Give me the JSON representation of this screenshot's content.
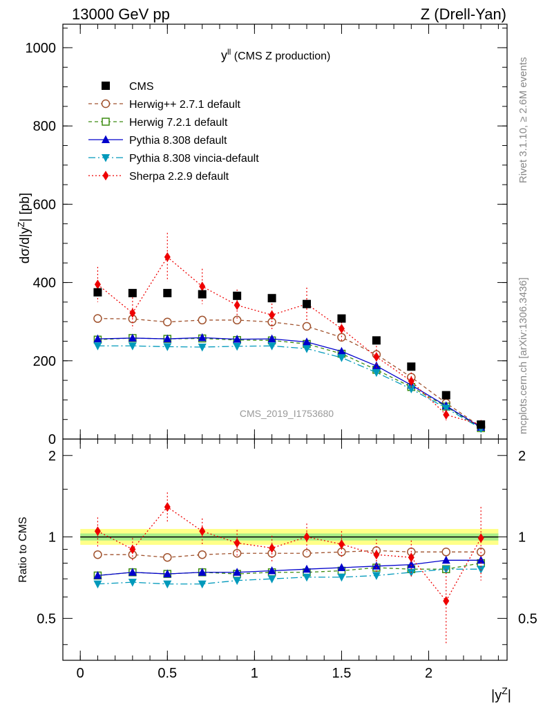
{
  "header": {
    "left": "13000 GeV pp",
    "right": "Z (Drell-Yan)"
  },
  "side_labels": {
    "rivet": "Rivet 3.1.10, ≥ 2.6M events",
    "mcplots": "mcplots.cern.ch [arXiv:1306.3436]"
  },
  "chart_data": {
    "type": "line",
    "title": "y^ll (CMS Z production)",
    "title_main": "y",
    "title_sup": "ll",
    "title_rest": " (CMS Z production)",
    "watermark": "CMS_2019_I1753680",
    "xlabel": "|y^Z|",
    "ylabel": "dσ/d|y^Z| [pb]",
    "ratio_ylabel": "Ratio to CMS",
    "xlim": [
      -0.1,
      2.45
    ],
    "ylim": [
      0,
      1060
    ],
    "ratio_ylim": [
      0.35,
      2.3
    ],
    "x_ticks": [
      "0",
      "0.5",
      "1",
      "1.5",
      "2"
    ],
    "y_ticks": [
      "0",
      "200",
      "400",
      "600",
      "800",
      "1000"
    ],
    "ratio_ticks": [
      "0.5",
      "1",
      "2"
    ],
    "x": [
      0.1,
      0.3,
      0.5,
      0.7,
      0.9,
      1.1,
      1.3,
      1.5,
      1.7,
      1.9,
      2.1,
      2.3
    ],
    "data": {
      "name": "CMS",
      "values": [
        375,
        373,
        373,
        370,
        366,
        360,
        345,
        308,
        252,
        185,
        112,
        37
      ]
    },
    "series": [
      {
        "name": "Herwig++ 2.7.1 default",
        "color": "#a0522d",
        "marker": "open-circle",
        "dash": "5,4",
        "values": [
          308,
          307,
          299,
          304,
          304,
          299,
          288,
          260,
          216,
          158,
          92,
          31
        ],
        "ratio": [
          0.86,
          0.86,
          0.84,
          0.86,
          0.87,
          0.87,
          0.87,
          0.88,
          0.89,
          0.88,
          0.88,
          0.88
        ]
      },
      {
        "name": "Herwig 7.2.1 default",
        "color": "#3c8c10",
        "marker": "open-square",
        "dash": "5,4",
        "values": [
          254,
          258,
          256,
          257,
          253,
          252,
          243,
          218,
          177,
          133,
          83,
          28
        ],
        "ratio": [
          0.72,
          0.74,
          0.73,
          0.74,
          0.73,
          0.74,
          0.74,
          0.75,
          0.77,
          0.76,
          0.76,
          0.8
        ]
      },
      {
        "name": "Pythia 8.308 default",
        "color": "#0000cc",
        "marker": "filled-triangle-up",
        "dash": "",
        "values": [
          256,
          258,
          256,
          259,
          255,
          256,
          248,
          224,
          187,
          138,
          85,
          30
        ],
        "ratio": [
          0.72,
          0.74,
          0.73,
          0.74,
          0.74,
          0.75,
          0.76,
          0.77,
          0.78,
          0.79,
          0.82,
          0.82
        ]
      },
      {
        "name": "Pythia 8.308 vincia-default",
        "color": "#0099bb",
        "marker": "filled-triangle-down",
        "dash": "10,4,2,4",
        "values": [
          238,
          238,
          236,
          235,
          237,
          238,
          231,
          208,
          170,
          128,
          79,
          27
        ],
        "ratio": [
          0.67,
          0.68,
          0.67,
          0.67,
          0.69,
          0.7,
          0.71,
          0.71,
          0.72,
          0.74,
          0.76,
          0.76
        ]
      },
      {
        "name": "Sherpa 2.2.9 default",
        "color": "#ee0000",
        "marker": "filled-diamond",
        "dash": "2,3",
        "values": [
          395,
          322,
          465,
          390,
          342,
          317,
          345,
          282,
          210,
          148,
          62,
          37
        ],
        "errors": [
          45,
          40,
          62,
          45,
          40,
          38,
          42,
          35,
          28,
          22,
          14,
          8
        ],
        "ratio": [
          1.05,
          0.9,
          1.29,
          1.05,
          0.95,
          0.91,
          1.0,
          0.94,
          0.86,
          0.84,
          0.58,
          0.99
        ],
        "ratio_errors": [
          0.13,
          0.09,
          0.17,
          0.12,
          0.11,
          0.1,
          0.12,
          0.11,
          0.12,
          0.13,
          0.18,
          0.3
        ]
      }
    ]
  }
}
